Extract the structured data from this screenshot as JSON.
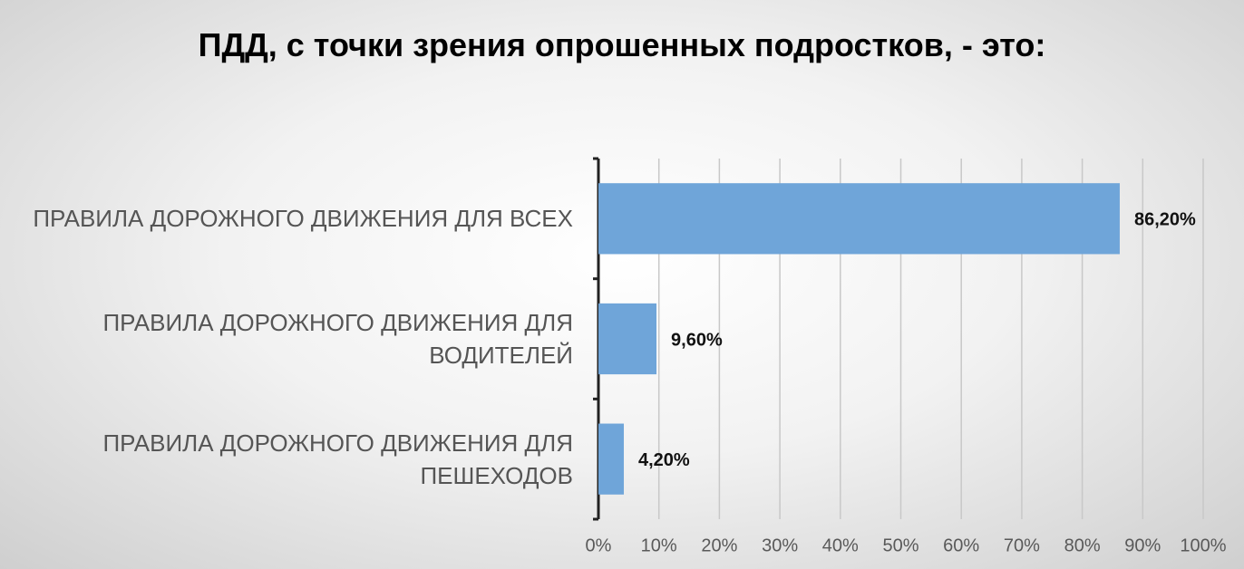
{
  "chart_data": {
    "type": "bar",
    "orientation": "horizontal",
    "title": "ПДД, с точки зрения опрошенных подростков, - это:",
    "categories": [
      "ПРАВИЛА ДОРОЖНОГО ДВИЖЕНИЯ ДЛЯ ВСЕХ",
      "ПРАВИЛА ДОРОЖНОГО ДВИЖЕНИЯ ДЛЯ ВОДИТЕЛЕЙ",
      "ПРАВИЛА ДОРОЖНОГО ДВИЖЕНИЯ ДЛЯ ПЕШЕХОДОВ"
    ],
    "values": [
      86.2,
      9.6,
      4.2
    ],
    "value_labels": [
      "86,20%",
      "9,60%",
      "4,20%"
    ],
    "color": "#6fa5d9",
    "xlim": [
      0,
      100
    ],
    "xticks": [
      {
        "value": 0,
        "label": "0%"
      },
      {
        "value": 10,
        "label": "10%"
      },
      {
        "value": 20,
        "label": "20%"
      },
      {
        "value": 30,
        "label": "30%"
      },
      {
        "value": 40,
        "label": "40%"
      },
      {
        "value": 50,
        "label": "50%"
      },
      {
        "value": 60,
        "label": "60%"
      },
      {
        "value": 70,
        "label": "70%"
      },
      {
        "value": 80,
        "label": "80%"
      },
      {
        "value": 90,
        "label": "90%"
      },
      {
        "value": 100,
        "label": "100%"
      }
    ],
    "grid": true
  }
}
